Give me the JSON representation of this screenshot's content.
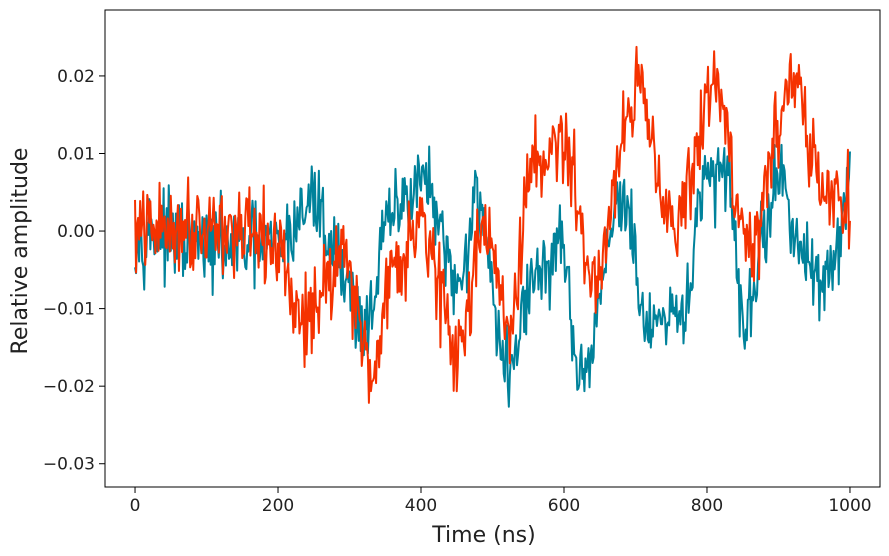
{
  "chart_data": {
    "type": "line",
    "title": "",
    "xlabel": "Time (ns)",
    "ylabel": "Relative amplitude",
    "xlim": [
      -42,
      1042
    ],
    "ylim": [
      -0.033,
      0.0285
    ],
    "xticks": [
      0,
      200,
      400,
      600,
      800,
      1000
    ],
    "xtick_labels": [
      "0",
      "200",
      "400",
      "600",
      "800",
      "1000"
    ],
    "yticks": [
      -0.03,
      -0.02,
      -0.01,
      0.0,
      0.01,
      0.02
    ],
    "ytick_labels": [
      "−0.03",
      "−0.02",
      "−0.01",
      "0.00",
      "0.01",
      "0.02"
    ],
    "grid": false,
    "legend": null,
    "series": [
      {
        "name": "teal",
        "color": "#00829b",
        "x_start": 0,
        "x_end": 1000,
        "noise_amplitude": 0.0032,
        "description_points_x": [
          0,
          100,
          200,
          250,
          280,
          320,
          360,
          400,
          450,
          480,
          520,
          560,
          600,
          620,
          680,
          720,
          760,
          800,
          830,
          850,
          900,
          950,
          980,
          1000
        ],
        "description_points_y": [
          0.0,
          -0.002,
          -0.002,
          0.004,
          -0.003,
          -0.012,
          0.002,
          0.007,
          -0.007,
          0.004,
          -0.018,
          -0.006,
          -0.002,
          -0.021,
          0.004,
          -0.013,
          -0.012,
          0.006,
          0.008,
          -0.011,
          0.006,
          -0.006,
          -0.004,
          0.006
        ]
      },
      {
        "name": "orange",
        "color": "#f53200",
        "x_start": 0,
        "x_end": 1000,
        "noise_amplitude": 0.0035,
        "description_points_x": [
          0,
          100,
          200,
          230,
          260,
          290,
          330,
          360,
          400,
          450,
          490,
          520,
          560,
          600,
          640,
          700,
          760,
          810,
          860,
          920,
          960,
          1000
        ],
        "description_points_y": [
          0.0,
          0.001,
          -0.002,
          -0.012,
          -0.008,
          -0.002,
          -0.018,
          -0.005,
          0.002,
          -0.016,
          0.002,
          -0.013,
          0.009,
          0.011,
          -0.006,
          0.018,
          0.001,
          0.019,
          -0.002,
          0.02,
          0.005,
          0.004
        ]
      }
    ]
  }
}
